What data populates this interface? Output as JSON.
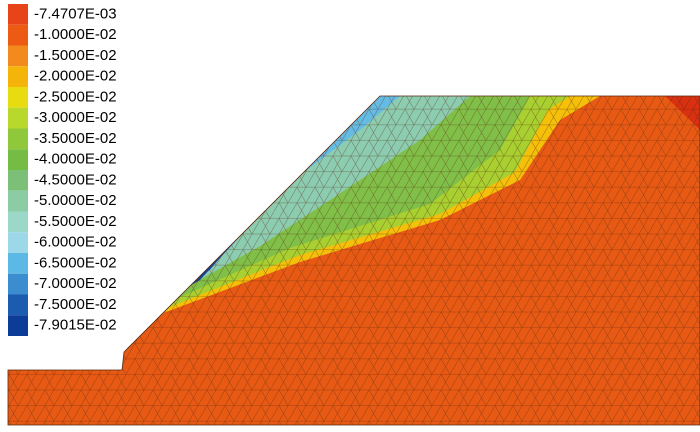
{
  "legend": {
    "entries": [
      {
        "label": "-7.4707E-03",
        "color": "#e8441a"
      },
      {
        "label": "-1.0000E-02",
        "color": "#ec5a14"
      },
      {
        "label": "-1.5000E-02",
        "color": "#f28a1e"
      },
      {
        "label": "-2.0000E-02",
        "color": "#f5b40a"
      },
      {
        "label": "-2.5000E-02",
        "color": "#e8dc10"
      },
      {
        "label": "-3.0000E-02",
        "color": "#b8d82c"
      },
      {
        "label": "-3.5000E-02",
        "color": "#90c83c"
      },
      {
        "label": "-4.0000E-02",
        "color": "#74bc44"
      },
      {
        "label": "-4.5000E-02",
        "color": "#7cc078"
      },
      {
        "label": "-5.0000E-02",
        "color": "#8ccca4"
      },
      {
        "label": "-5.5000E-02",
        "color": "#9cd8c8"
      },
      {
        "label": "-6.0000E-02",
        "color": "#9cd8e8"
      },
      {
        "label": "-6.5000E-02",
        "color": "#5cb8e4"
      },
      {
        "label": "-7.0000E-02",
        "color": "#3c8cd0"
      },
      {
        "label": "-7.5000E-02",
        "color": "#1c5cb0"
      },
      {
        "label": "-7.9015E-02",
        "color": "#0c3c98"
      }
    ]
  }
}
